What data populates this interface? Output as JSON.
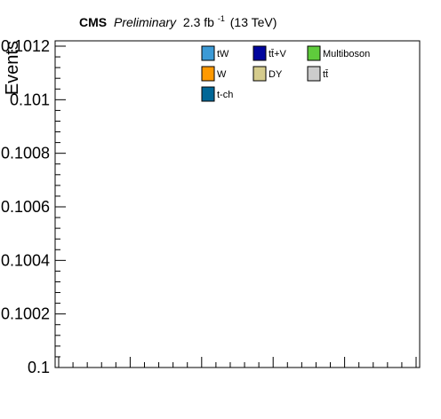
{
  "header": {
    "experiment": "CMS",
    "status": "Preliminary",
    "lumi_value": "2.3 fb",
    "lumi_exponent": "-1",
    "energy": "(13 TeV)"
  },
  "chart_data": {
    "type": "bar",
    "title": "",
    "xlabel": "",
    "ylabel": "Events",
    "ylim": [
      0.1,
      0.1012
    ],
    "yticks": [
      {
        "value": 0.1,
        "label": "0.1"
      },
      {
        "value": 0.1002,
        "label": "0.1002"
      },
      {
        "value": 0.1004,
        "label": "0.1004"
      },
      {
        "value": 0.1006,
        "label": "0.1006"
      },
      {
        "value": 0.1008,
        "label": "0.1008"
      },
      {
        "value": 0.101,
        "label": "0.101"
      },
      {
        "value": 0.1012,
        "label": "0.1012"
      }
    ],
    "grid": false,
    "legend_position": "top-right",
    "series": [
      {
        "name": "tW",
        "color": "#3b9ad6",
        "values": []
      },
      {
        "name": "tt̄+V",
        "color": "#00059d",
        "values": []
      },
      {
        "name": "Multiboson",
        "color": "#5fcc3c",
        "values": []
      },
      {
        "name": "W",
        "color": "#ff9900",
        "values": []
      },
      {
        "name": "DY",
        "color": "#d5cc8d",
        "values": []
      },
      {
        "name": "tt̄",
        "color": "#cccccc",
        "values": []
      },
      {
        "name": "t-ch",
        "color": "#006797",
        "values": []
      }
    ]
  }
}
